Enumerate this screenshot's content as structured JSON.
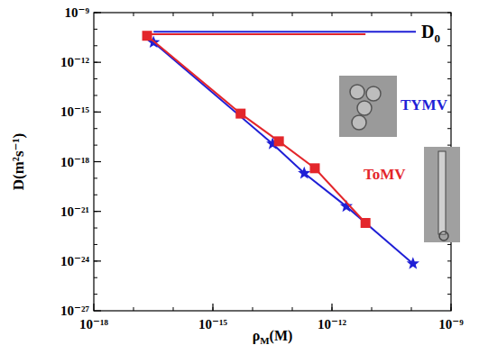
{
  "chart_data": {
    "type": "scatter",
    "log": true,
    "x_label": "ρM(M)",
    "y_label": "D(m²s⁻¹)",
    "annotation": "D0",
    "legend": "right",
    "xlim": [
      1e-18,
      1e-09
    ],
    "ylim": [
      1e-27,
      1e-09
    ],
    "xticks": [
      {
        "value": 1e-18,
        "label": "10⁻¹⁸"
      },
      {
        "value": 1e-15,
        "label": "10⁻¹⁵"
      },
      {
        "value": 1e-12,
        "label": "10⁻¹²"
      },
      {
        "value": 1e-09,
        "label": "10⁻⁹"
      }
    ],
    "yticks": [
      {
        "value": 1e-27,
        "label": "10⁻²⁷"
      },
      {
        "value": 1e-24,
        "label": "10⁻²⁴"
      },
      {
        "value": 1e-21,
        "label": "10⁻²¹"
      },
      {
        "value": 1e-18,
        "label": "10⁻¹⁸"
      },
      {
        "value": 1e-15,
        "label": "10⁻¹⁵"
      },
      {
        "value": 1e-12,
        "label": "10⁻¹²"
      },
      {
        "value": 1e-09,
        "label": "10⁻⁹"
      }
    ],
    "series": [
      {
        "name": "TYMV",
        "color": "#1f1fd6",
        "marker": "star",
        "line_style": "solid",
        "x": [
          3.2e-17,
          3.2e-14,
          2e-13,
          2.3e-12,
          1.1e-10
        ],
        "values": [
          1.6e-11,
          1.2e-17,
          2e-19,
          2e-21,
          7e-25
        ]
      },
      {
        "name": "ToMV",
        "color": "#e3262b",
        "marker": "square",
        "line_style": "solid",
        "x": [
          2.2e-17,
          5e-15,
          4.6e-14,
          3.7e-13,
          7e-12
        ],
        "values": [
          4e-11,
          8e-16,
          1.7e-17,
          4e-19,
          2e-22
        ]
      },
      {
        "type": "line",
        "color": "#1f1fd6",
        "marker": "none",
        "line_style": "solid",
        "x": [
          3.2e-17,
          1.3e-10
        ],
        "values": [
          7e-11,
          7e-11
        ]
      },
      {
        "type": "line",
        "color": "#e3262b",
        "marker": "none",
        "line_style": "solid",
        "x": [
          2.2e-17,
          7e-12
        ],
        "values": [
          5e-11,
          5e-11
        ]
      }
    ]
  }
}
